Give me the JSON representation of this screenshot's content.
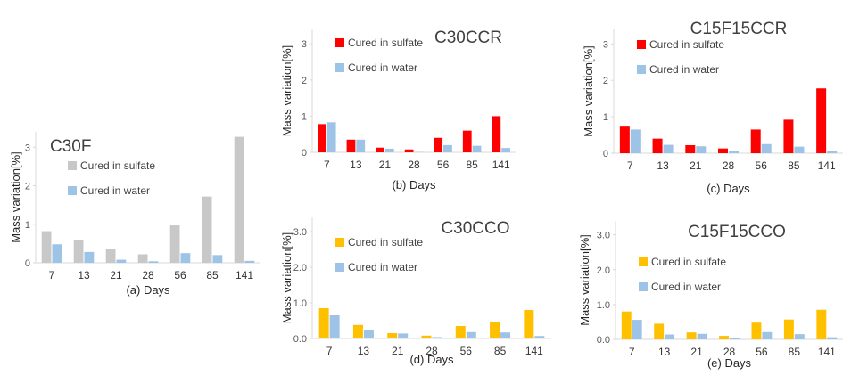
{
  "chart_data": [
    {
      "type": "bar",
      "panel_title": "C30F",
      "xlabel": "(a) Days",
      "ylabel": "Mass variation[%]",
      "categories": [
        "7",
        "13",
        "21",
        "28",
        "56",
        "85",
        "141"
      ],
      "yticks": [
        "0",
        "1",
        "2",
        "3"
      ],
      "ylim": [
        0,
        3.4
      ],
      "series": [
        {
          "name": "Cured in sulfate",
          "color": "#c8c8c8",
          "values": [
            0.82,
            0.6,
            0.35,
            0.22,
            0.97,
            1.72,
            3.27
          ]
        },
        {
          "name": "Cured in water",
          "color": "#9dc3e6",
          "values": [
            0.48,
            0.28,
            0.08,
            0.04,
            0.25,
            0.2,
            0.05
          ]
        }
      ]
    },
    {
      "type": "bar",
      "panel_title": "C30CCR",
      "xlabel": "(b) Days",
      "ylabel": "Mass variation[%]",
      "categories": [
        "7",
        "13",
        "21",
        "28",
        "56",
        "85",
        "141"
      ],
      "yticks": [
        "0",
        "1",
        "2",
        "3"
      ],
      "ylim": [
        0,
        3.4
      ],
      "series": [
        {
          "name": "Cured in sulfate",
          "color": "#ff0000",
          "values": [
            0.78,
            0.35,
            0.13,
            0.08,
            0.4,
            0.6,
            1.0
          ]
        },
        {
          "name": "Cured in water",
          "color": "#9dc3e6",
          "values": [
            0.83,
            0.35,
            0.1,
            0.01,
            0.2,
            0.18,
            0.12
          ]
        }
      ]
    },
    {
      "type": "bar",
      "panel_title": "C15F15CCR",
      "xlabel": "(c) Days",
      "ylabel": "Mass variation[%]",
      "categories": [
        "7",
        "13",
        "21",
        "28",
        "56",
        "85",
        "141"
      ],
      "yticks": [
        "0",
        "1",
        "2",
        "3"
      ],
      "ylim": [
        0,
        3.4
      ],
      "series": [
        {
          "name": "Cured in sulfate",
          "color": "#ff0000",
          "values": [
            0.73,
            0.4,
            0.22,
            0.13,
            0.65,
            0.92,
            1.78
          ]
        },
        {
          "name": "Cured in water",
          "color": "#9dc3e6",
          "values": [
            0.65,
            0.23,
            0.19,
            0.05,
            0.25,
            0.18,
            0.05
          ]
        }
      ]
    },
    {
      "type": "bar",
      "panel_title": "C30CCO",
      "xlabel": "(d) Days",
      "ylabel": "Mass variation[%]",
      "categories": [
        "7",
        "13",
        "21",
        "28",
        "56",
        "85",
        "141"
      ],
      "yticks": [
        "0.0",
        "1.0",
        "2.0",
        "3.0"
      ],
      "ylim": [
        0,
        3.4
      ],
      "series": [
        {
          "name": "Cured in sulfate",
          "color": "#ffc000",
          "values": [
            0.85,
            0.38,
            0.15,
            0.08,
            0.35,
            0.45,
            0.8
          ]
        },
        {
          "name": "Cured in water",
          "color": "#9dc3e6",
          "values": [
            0.65,
            0.25,
            0.14,
            0.04,
            0.18,
            0.17,
            0.07
          ]
        }
      ]
    },
    {
      "type": "bar",
      "panel_title": "C15F15CCO",
      "xlabel": "(e) Days",
      "ylabel": "Mass variation[%]",
      "categories": [
        "7",
        "13",
        "21",
        "28",
        "56",
        "85",
        "141"
      ],
      "yticks": [
        "0.0",
        "1.0",
        "2.0",
        "3.0"
      ],
      "ylim": [
        0,
        3.4
      ],
      "series": [
        {
          "name": "Cured in sulfate",
          "color": "#ffc000",
          "values": [
            0.8,
            0.45,
            0.2,
            0.1,
            0.48,
            0.57,
            0.85
          ]
        },
        {
          "name": "Cured in water",
          "color": "#9dc3e6",
          "values": [
            0.56,
            0.14,
            0.16,
            0.04,
            0.21,
            0.15,
            0.06
          ]
        }
      ]
    }
  ]
}
